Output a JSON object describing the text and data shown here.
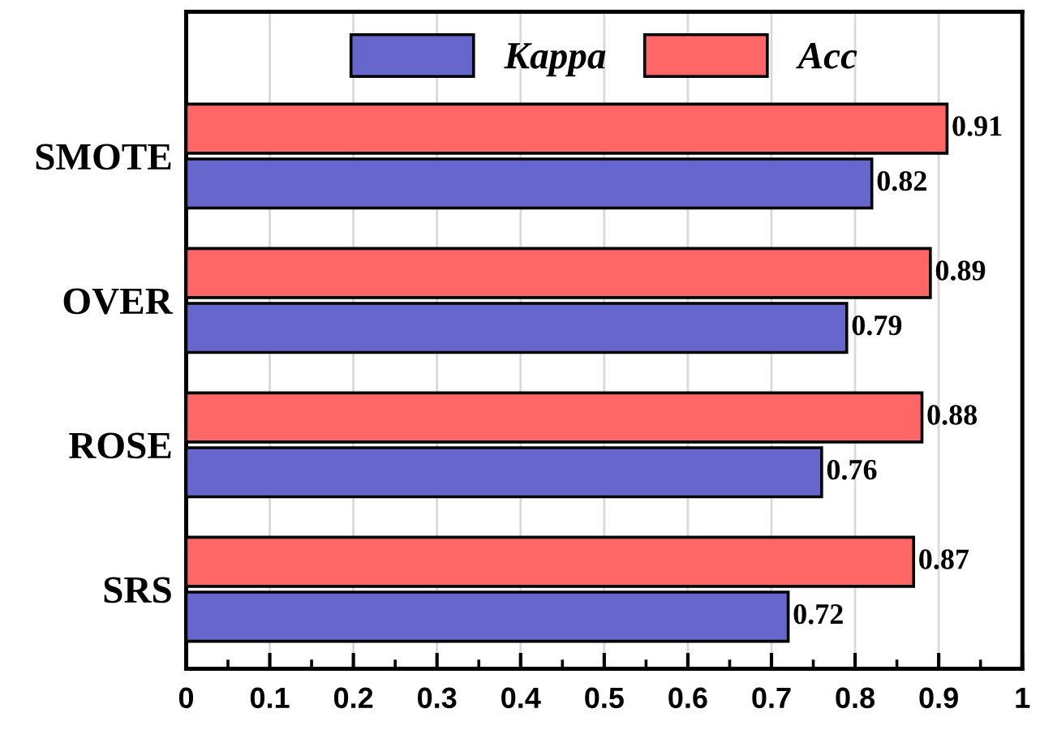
{
  "chart_data": {
    "type": "bar",
    "orientation": "horizontal",
    "categories": [
      "SMOTE",
      "OVER",
      "ROSE",
      "SRS"
    ],
    "series": [
      {
        "name": "Kappa",
        "color": "#6666cc",
        "values": [
          0.82,
          0.79,
          0.76,
          0.72
        ]
      },
      {
        "name": "Acc",
        "color": "#ff6666",
        "values": [
          0.91,
          0.89,
          0.88,
          0.87
        ]
      }
    ],
    "xlim": [
      0,
      1
    ],
    "xticks": [
      0,
      0.1,
      0.2,
      0.3,
      0.4,
      0.5,
      0.6,
      0.7,
      0.8,
      0.9,
      1
    ],
    "data_labels": true,
    "grid": "x",
    "legend": "top"
  }
}
